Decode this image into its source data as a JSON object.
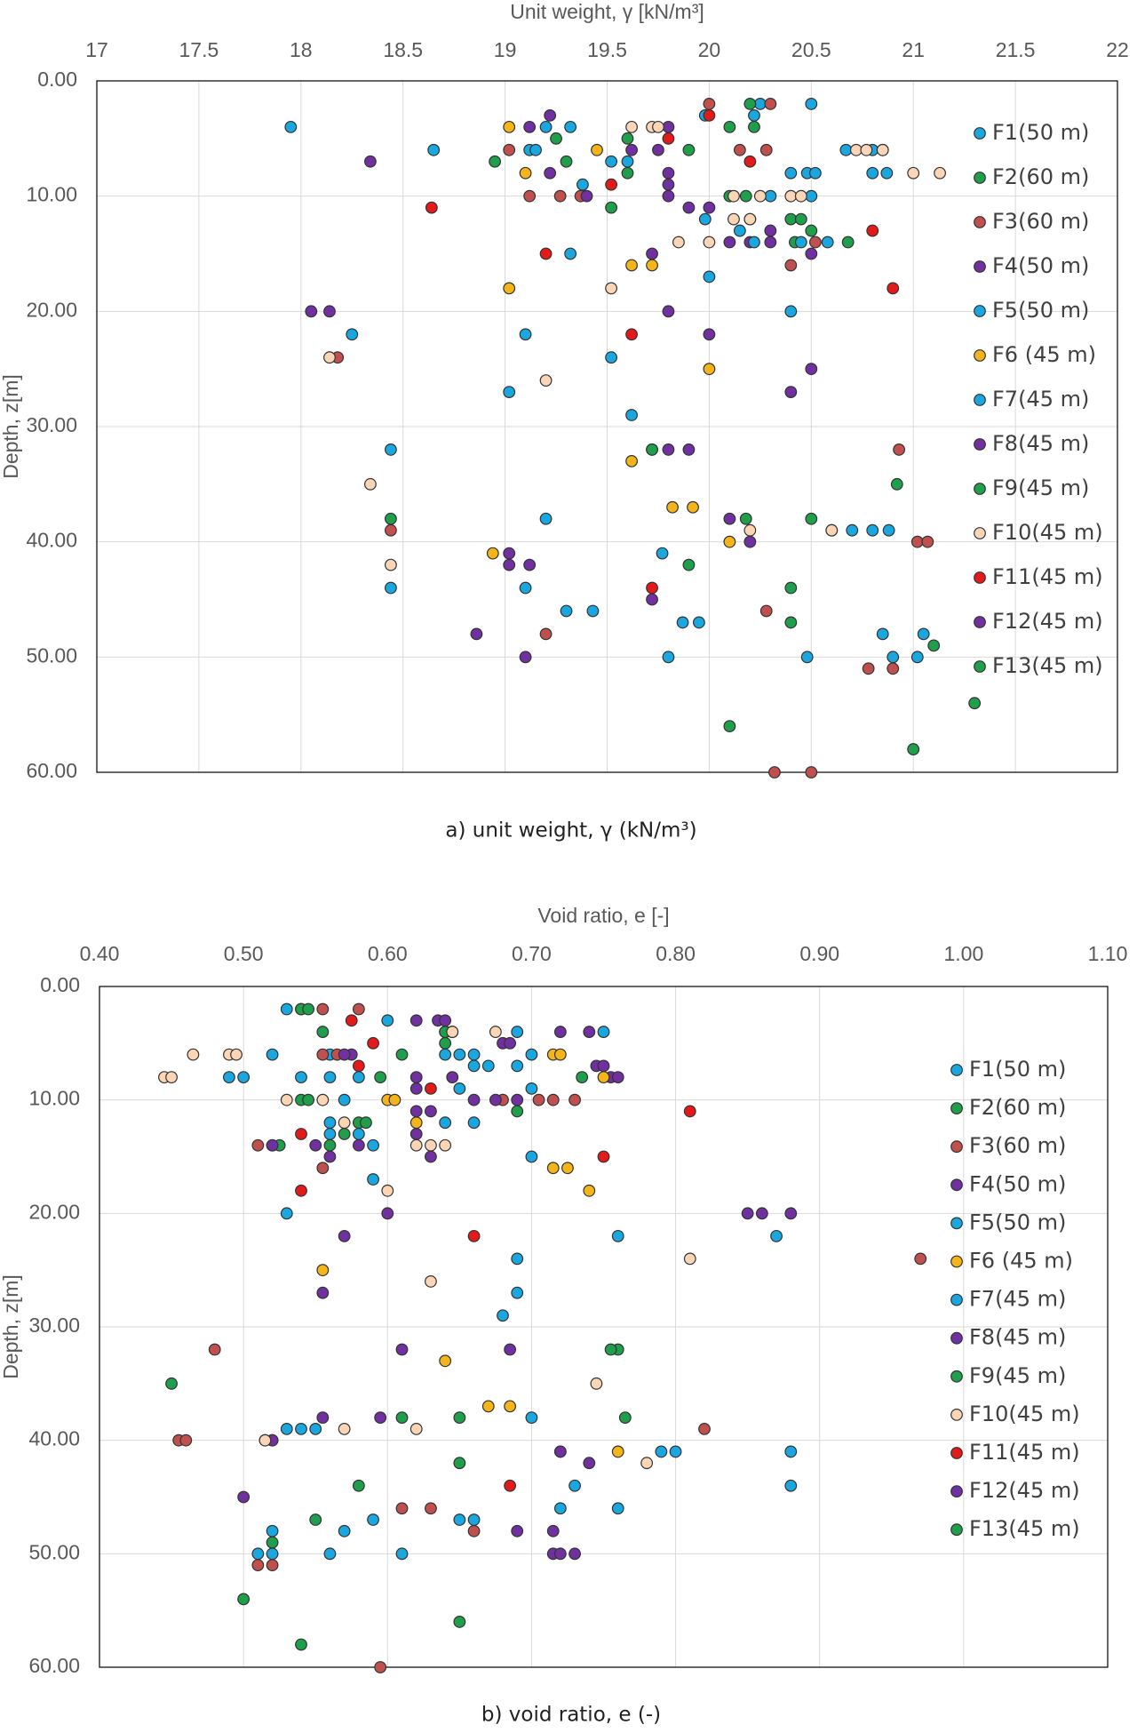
{
  "chart_data": [
    {
      "type": "scatter",
      "title": "Unit weight, γ [kN/m³]",
      "caption": "a) unit weight, γ (kN/m³)",
      "y_label": "Depth, z[m]",
      "xlim": [
        17,
        22
      ],
      "xticks": [
        17,
        17.5,
        18,
        18.5,
        19,
        19.5,
        20,
        20.5,
        21,
        21.5,
        22
      ],
      "xaxis_position": "top",
      "ylim": [
        0,
        60
      ],
      "y_inverted": true,
      "grid": true,
      "yticks": [
        {
          "value": 0,
          "label": "0.00"
        },
        {
          "value": 10,
          "label": "10.00"
        },
        {
          "value": 20,
          "label": "20.00"
        },
        {
          "value": 30,
          "label": "30.00"
        },
        {
          "value": 40,
          "label": "40.00"
        },
        {
          "value": 50,
          "label": "50.00"
        },
        {
          "value": 60,
          "label": "60.00"
        }
      ],
      "series": [
        {
          "name": "F1(50 m)",
          "color": "#1aa7e0",
          "x": [
            17.95,
            19.2,
            19.32,
            19.98,
            20.25,
            20.5,
            20.4,
            20.48,
            20.52,
            20.67,
            20.8,
            20.85,
            20.8,
            20.87,
            19.98
          ],
          "values": [
            4,
            4,
            4,
            3,
            2,
            2,
            8,
            8,
            8,
            6,
            6,
            6,
            8,
            8,
            12
          ]
        },
        {
          "name": "F2(60 m)",
          "color": "#1f9e4b",
          "x": [
            20.2,
            20.22,
            20.1,
            19.25,
            19.6,
            19.3,
            18.95,
            19.6,
            19.9,
            20.1,
            20.18,
            19.52,
            20.4,
            20.45,
            20.5,
            20.68,
            20.42
          ],
          "values": [
            2,
            4,
            4,
            5,
            5,
            7,
            7,
            8,
            6,
            10,
            10,
            11,
            12,
            12,
            13,
            14,
            14
          ]
        },
        {
          "name": "F3(60 m)",
          "color": "#c0504d",
          "x": [
            20.0,
            20.3,
            19.02,
            20.15,
            20.28,
            19.12,
            19.27,
            19.37,
            20.4,
            20.52,
            18.18,
            18.44,
            20.93,
            21.02,
            21.07,
            20.28,
            19.2,
            20.78,
            20.9,
            20.32,
            20.5
          ],
          "values": [
            2,
            2,
            6,
            6,
            6,
            10,
            10,
            10,
            16,
            14,
            24,
            39,
            32,
            40,
            40,
            46,
            48,
            51,
            51,
            60,
            60
          ]
        },
        {
          "name": "F4(50 m)",
          "color": "#7030a0",
          "x": [
            19.22,
            19.12,
            19.8,
            18.34,
            19.22,
            19.62,
            19.75,
            19.4,
            19.8,
            19.8,
            19.8,
            19.9,
            20.0,
            20.1,
            20.2,
            20.3,
            20.3,
            20.5,
            19.72,
            18.05,
            18.14,
            19.8,
            20.0,
            20.5,
            20.4
          ],
          "values": [
            3,
            4,
            4,
            7,
            8,
            6,
            6,
            10,
            8,
            9,
            10,
            11,
            11,
            14,
            14,
            13,
            14,
            15,
            15,
            20,
            20,
            20,
            22,
            25,
            27
          ]
        },
        {
          "name": "F5(50 m)",
          "color": "#1aa7e0",
          "x": [
            18.65,
            19.12,
            19.15,
            19.38,
            19.52,
            19.6,
            20.22,
            20.15,
            20.2,
            20.22,
            20.3,
            20.45,
            20.58,
            20.5,
            19.32,
            20.0,
            20.4,
            18.25,
            19.1,
            19.52
          ],
          "values": [
            6,
            6,
            6,
            9,
            7,
            7,
            3,
            13,
            12,
            14,
            10,
            14,
            14,
            10,
            15,
            17,
            20,
            22,
            22,
            24
          ]
        },
        {
          "name": "F6 (45 m)",
          "color": "#f4b41a",
          "x": [
            19.02,
            19.45,
            19.1,
            19.02,
            19.62,
            19.72,
            20.0,
            19.62,
            19.82,
            19.92,
            20.1,
            18.94
          ],
          "values": [
            4,
            6,
            8,
            18,
            16,
            16,
            25,
            33,
            37,
            37,
            40,
            41
          ]
        },
        {
          "name": "F7(45 m)",
          "color": "#1aa7e0",
          "x": [
            19.02,
            19.62,
            18.44,
            19.2,
            20.6,
            20.7,
            20.8,
            20.88,
            19.77,
            18.44,
            19.1,
            19.3,
            19.43,
            19.87,
            19.95,
            20.85,
            21.05,
            19.8,
            20.48,
            20.9,
            21.02
          ],
          "values": [
            27,
            29,
            32,
            38,
            39,
            39,
            39,
            39,
            41,
            44,
            44,
            46,
            46,
            47,
            47,
            48,
            48,
            50,
            50,
            50,
            50
          ]
        },
        {
          "name": "F8(45 m)",
          "color": "#7030a0",
          "x": [
            19.72,
            19.8,
            19.9,
            20.1,
            20.2
          ],
          "values": [
            32,
            32,
            32,
            38,
            40
          ]
        },
        {
          "name": "F9(45 m)",
          "color": "#1f9e4b",
          "x": [
            19.72,
            20.92,
            18.44,
            20.18,
            20.5,
            19.9
          ],
          "values": [
            32,
            35,
            38,
            38,
            38,
            42
          ]
        },
        {
          "name": "F10(45 m)",
          "color": "#fbd5b5",
          "x": [
            19.62,
            19.72,
            19.75,
            20.12,
            20.2,
            20.25,
            20.4,
            20.45,
            20.72,
            20.77,
            20.85,
            21.0,
            21.13,
            20.12,
            20.0,
            19.85,
            19.52,
            19.2,
            18.14,
            18.34,
            18.44,
            20.2,
            20.6
          ],
          "values": [
            4,
            4,
            4,
            12,
            12,
            10,
            10,
            10,
            6,
            6,
            6,
            8,
            8,
            10,
            14,
            14,
            18,
            26,
            24,
            35,
            42,
            39,
            39
          ]
        },
        {
          "name": "F11(45 m)",
          "color": "#e41a1a",
          "x": [
            20.0,
            19.8,
            20.2,
            19.52,
            18.64,
            19.2,
            20.8,
            20.9,
            19.62,
            19.72
          ],
          "values": [
            3,
            5,
            7,
            9,
            11,
            15,
            13,
            18,
            22,
            44
          ]
        },
        {
          "name": "F12(45 m)",
          "color": "#7030a0",
          "x": [
            19.02,
            19.02,
            19.12,
            19.72,
            18.86,
            19.1
          ],
          "values": [
            41,
            42,
            42,
            45,
            48,
            50
          ]
        },
        {
          "name": "F13(45 m)",
          "color": "#1f9e4b",
          "x": [
            20.4,
            20.4,
            21.1,
            21.3,
            20.1,
            21.0
          ],
          "values": [
            44,
            47,
            49,
            54,
            56,
            58
          ]
        }
      ]
    },
    {
      "type": "scatter",
      "title": "Void ratio, e [-]",
      "caption": "b) void ratio, e (-)",
      "y_label": "Depth, z[m]",
      "xlim": [
        0.4,
        1.1
      ],
      "xaxis_position": "top",
      "xticks": [
        {
          "value": 0.4,
          "label": "0.40"
        },
        {
          "value": 0.5,
          "label": "0.50"
        },
        {
          "value": 0.6,
          "label": "0.60"
        },
        {
          "value": 0.7,
          "label": "0.70"
        },
        {
          "value": 0.8,
          "label": "0.80"
        },
        {
          "value": 0.9,
          "label": "0.90"
        },
        {
          "value": 1.0,
          "label": "1.00"
        },
        {
          "value": 1.1,
          "label": "1.10"
        }
      ],
      "ylim": [
        0,
        60
      ],
      "y_inverted": true,
      "grid": true,
      "yticks": [
        {
          "value": 0,
          "label": "0.00"
        },
        {
          "value": 10,
          "label": "10.00"
        },
        {
          "value": 20,
          "label": "20.00"
        },
        {
          "value": 30,
          "label": "30.00"
        },
        {
          "value": 40,
          "label": "40.00"
        },
        {
          "value": 50,
          "label": "50.00"
        },
        {
          "value": 60,
          "label": "60.00"
        }
      ],
      "series": [
        {
          "name": "F1(50 m)",
          "color": "#1aa7e0",
          "x": [
            0.53,
            0.54,
            0.6,
            0.64,
            0.69,
            0.75,
            0.7,
            0.66,
            0.64,
            0.65,
            0.56,
            0.52,
            0.49,
            0.5,
            0.54
          ],
          "values": [
            2,
            2,
            3,
            4,
            4,
            4,
            6,
            6,
            6,
            6,
            6,
            6,
            8,
            8,
            8
          ]
        },
        {
          "name": "F2(60 m)",
          "color": "#1f9e4b",
          "x": [
            0.54,
            0.545,
            0.555,
            0.64,
            0.64,
            0.61,
            0.735,
            0.595,
            0.54,
            0.545,
            0.69,
            0.58,
            0.57,
            0.585,
            0.52,
            0.525,
            0.56
          ],
          "values": [
            2,
            2,
            4,
            5,
            4,
            6,
            8,
            8,
            10,
            10,
            11,
            12,
            13,
            12,
            14,
            14,
            14
          ]
        },
        {
          "name": "F3(60 m)",
          "color": "#c0504d",
          "x": [
            0.555,
            0.58,
            0.555,
            0.565,
            0.705,
            0.715,
            0.73,
            0.68,
            0.51,
            0.555,
            0.48,
            0.455,
            0.46,
            0.82,
            0.97,
            0.61,
            0.63,
            0.66,
            0.51,
            0.52,
            0.595
          ],
          "values": [
            2,
            2,
            6,
            6,
            10,
            10,
            10,
            10,
            14,
            16,
            32,
            40,
            40,
            39,
            24,
            46,
            46,
            48,
            51,
            51,
            60
          ]
        },
        {
          "name": "F4(50 m)",
          "color": "#7030a0",
          "x": [
            0.62,
            0.635,
            0.64,
            0.68,
            0.685,
            0.72,
            0.74,
            0.745,
            0.75,
            0.755,
            0.76,
            0.575,
            0.57,
            0.62,
            0.645,
            0.62,
            0.62,
            0.63,
            0.66,
            0.675,
            0.69,
            0.58,
            0.63,
            0.52,
            0.55,
            0.62,
            0.56,
            0.57,
            0.6,
            0.85,
            0.86,
            0.88,
            0.555
          ],
          "values": [
            3,
            3,
            3,
            5,
            5,
            4,
            4,
            7,
            7,
            8,
            8,
            6,
            6,
            8,
            8,
            9,
            11,
            11,
            10,
            10,
            10,
            14,
            15,
            14,
            14,
            13,
            15,
            22,
            20,
            20,
            20,
            20,
            27
          ]
        },
        {
          "name": "F5(50 m)",
          "color": "#1aa7e0",
          "x": [
            0.56,
            0.58,
            0.66,
            0.67,
            0.69,
            0.65,
            0.7,
            0.57,
            0.56,
            0.56,
            0.58,
            0.59,
            0.64,
            0.66,
            0.7,
            0.59,
            0.53
          ],
          "values": [
            8,
            8,
            7,
            7,
            7,
            9,
            9,
            10,
            12,
            13,
            13,
            14,
            12,
            12,
            15,
            17,
            20
          ]
        },
        {
          "name": "F6 (45 m)",
          "color": "#f4b41a",
          "x": [
            0.645,
            0.715,
            0.72,
            0.6,
            0.605,
            0.715,
            0.725,
            0.74,
            0.555,
            0.64,
            0.67,
            0.685,
            0.75,
            0.52,
            0.76,
            0.62
          ],
          "values": [
            4,
            6,
            6,
            10,
            10,
            16,
            16,
            18,
            25,
            33,
            37,
            37,
            8,
            40,
            41,
            12
          ]
        },
        {
          "name": "F7(45 m)",
          "color": "#1aa7e0",
          "x": [
            0.69,
            0.69,
            0.68,
            0.7,
            0.72,
            0.8,
            0.88,
            0.73,
            0.72,
            0.76,
            0.65,
            0.66,
            0.52,
            0.57,
            0.59,
            0.51,
            0.52,
            0.56,
            0.61,
            0.55,
            0.53,
            0.54,
            0.87,
            0.76,
            0.79,
            0.88
          ],
          "values": [
            24,
            27,
            29,
            38,
            41,
            41,
            41,
            44,
            46,
            46,
            47,
            47,
            48,
            48,
            47,
            50,
            50,
            50,
            50,
            39,
            39,
            39,
            22,
            22,
            41,
            44
          ]
        },
        {
          "name": "F8(45 m)",
          "color": "#7030a0",
          "x": [
            0.61,
            0.685,
            0.555,
            0.595,
            0.515,
            0.52
          ],
          "values": [
            32,
            32,
            38,
            38,
            40,
            40
          ]
        },
        {
          "name": "F9(45 m)",
          "color": "#1f9e4b",
          "x": [
            0.76,
            0.755,
            0.45,
            0.61,
            0.65,
            0.765,
            0.65
          ],
          "values": [
            32,
            32,
            35,
            38,
            38,
            38,
            42
          ]
        },
        {
          "name": "F10(45 m)",
          "color": "#fbd5b5",
          "x": [
            0.465,
            0.49,
            0.495,
            0.445,
            0.45,
            0.53,
            0.555,
            0.57,
            0.62,
            0.63,
            0.64,
            0.675,
            0.645,
            0.6,
            0.63,
            0.81,
            0.745,
            0.515,
            0.57,
            0.62,
            0.78
          ],
          "values": [
            6,
            6,
            6,
            8,
            8,
            10,
            10,
            12,
            14,
            14,
            14,
            4,
            4,
            18,
            26,
            24,
            35,
            40,
            39,
            39,
            42
          ]
        },
        {
          "name": "F11(45 m)",
          "color": "#e41a1a",
          "x": [
            0.575,
            0.59,
            0.58,
            0.63,
            0.54,
            0.54,
            0.75,
            0.81,
            0.66,
            0.685
          ],
          "values": [
            3,
            5,
            7,
            9,
            13,
            18,
            15,
            11,
            22,
            44
          ]
        },
        {
          "name": "F12(45 m)",
          "color": "#7030a0",
          "x": [
            0.72,
            0.74,
            0.5,
            0.69,
            0.715,
            0.715,
            0.72,
            0.73
          ],
          "values": [
            41,
            42,
            45,
            48,
            48,
            50,
            50,
            50
          ]
        },
        {
          "name": "F13(45 m)",
          "color": "#1f9e4b",
          "x": [
            0.58,
            0.55,
            0.52,
            0.5,
            0.65,
            0.54
          ],
          "values": [
            44,
            47,
            49,
            54,
            56,
            58
          ]
        }
      ]
    }
  ]
}
